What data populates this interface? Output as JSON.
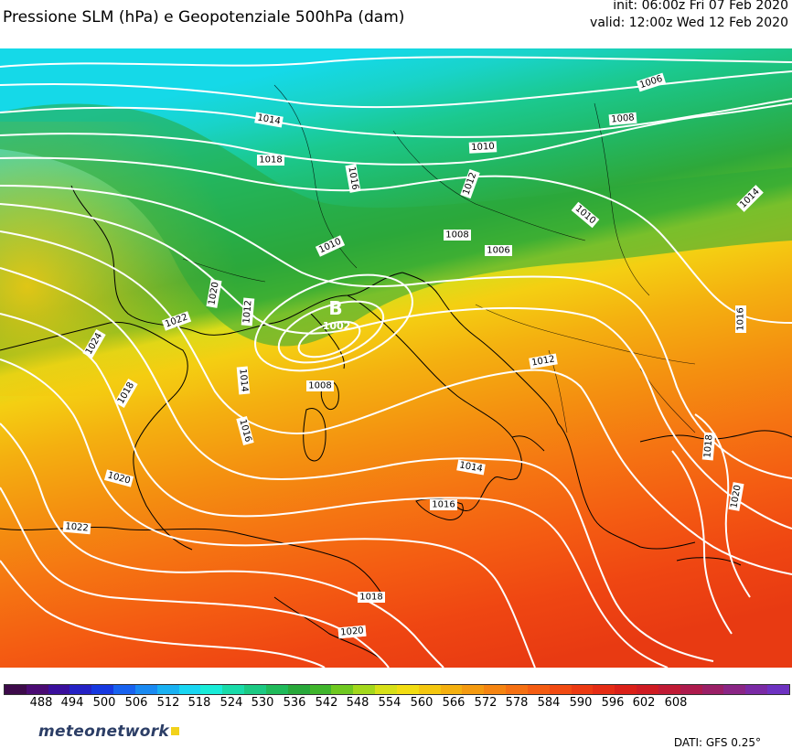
{
  "header": {
    "title": "Pressione SLM (hPa) e Geopotenziale 500hPa (dam)",
    "init": "init: 06:00z Fri 07 Feb 2020",
    "valid": "valid: 12:00z Wed 12 Feb 2020"
  },
  "low_center": {
    "letter": "B",
    "value": "1002"
  },
  "isobar_labels": [
    "1006",
    "1008",
    "1010",
    "1014",
    "1018",
    "1016",
    "1010",
    "1012",
    "1008",
    "1006",
    "1010",
    "1014",
    "1020",
    "1022",
    "1012",
    "1024",
    "1016",
    "1018",
    "1014",
    "1016",
    "1008",
    "1012",
    "1020",
    "1014",
    "1016",
    "1018",
    "1022",
    "1020",
    "1018",
    "1020",
    "1018",
    "1020"
  ],
  "colorbar": {
    "labels": [
      "488",
      "494",
      "500",
      "506",
      "512",
      "518",
      "524",
      "530",
      "536",
      "542",
      "548",
      "554",
      "560",
      "566",
      "572",
      "578",
      "584",
      "590",
      "596",
      "602",
      "608"
    ],
    "colors": [
      "#3d0a4a",
      "#4a0b73",
      "#3a0f9c",
      "#2421c4",
      "#1638e0",
      "#1862ef",
      "#1a8af2",
      "#19b1f2",
      "#19d6f2",
      "#19ecd8",
      "#19dba9",
      "#1bc983",
      "#1fba5a",
      "#28a83a",
      "#3fb52c",
      "#6fc820",
      "#a3d81c",
      "#d7e018",
      "#f2dd12",
      "#f4c70f",
      "#f4b00f",
      "#f49a10",
      "#f58411",
      "#f57012",
      "#f45c12",
      "#f14a12",
      "#ec3a12",
      "#e52c14",
      "#db2018",
      "#cf1b22",
      "#c01a34",
      "#ad1a4c",
      "#9a1f66",
      "#8a2585",
      "#7a2aa5",
      "#6d32c1"
    ]
  },
  "footer": {
    "logo": "meteonetwork",
    "source": "DATI: GFS 0.25°"
  }
}
